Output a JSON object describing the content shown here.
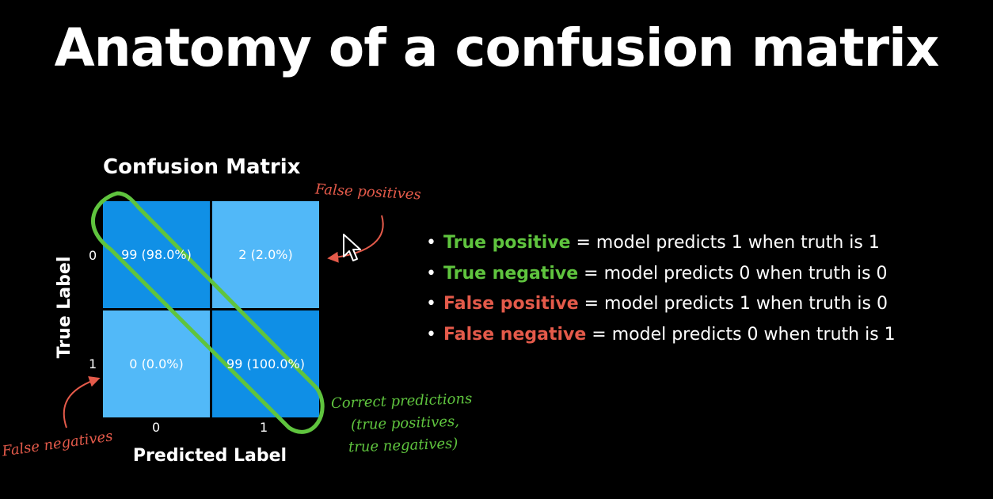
{
  "slide": {
    "title": "Anatomy of a confusion matrix"
  },
  "chart_data": {
    "type": "heatmap",
    "title": "Confusion Matrix",
    "xlabel": "Predicted Label",
    "ylabel": "True Label",
    "x_ticks": [
      "0",
      "1"
    ],
    "y_ticks": [
      "0",
      "1"
    ],
    "cells": [
      [
        {
          "count": 99,
          "percent": 98.0,
          "label": "99 (98.0%)"
        },
        {
          "count": 2,
          "percent": 2.0,
          "label": "2 (2.0%)"
        }
      ],
      [
        {
          "count": 0,
          "percent": 0.0,
          "label": "0 (0.0%)"
        },
        {
          "count": 99,
          "percent": 100.0,
          "label": "99 (100.0%)"
        }
      ]
    ],
    "colors": {
      "high": "#0F8FE6",
      "low": "#52B9F8",
      "highlight": "#5FC43E",
      "annotation_red": "#E45A4A",
      "annotation_green": "#5FC43E"
    },
    "annotations": {
      "false_positives": "False positives",
      "false_negatives": "False negatives",
      "correct_predictions": [
        "Correct predictions",
        "(true positives,",
        "true negatives)"
      ]
    }
  },
  "legend": [
    {
      "bullet": "•",
      "term": "True positive",
      "rest": " = model predicts 1 when truth is 1",
      "color": "#5FC43E"
    },
    {
      "bullet": "•",
      "term": "True negative",
      "rest": " = model predicts 0 when truth is 0",
      "color": "#5FC43E"
    },
    {
      "bullet": "•",
      "term": "False positive",
      "rest": " = model predicts 1 when truth is 0",
      "color": "#E45A4A"
    },
    {
      "bullet": "•",
      "term": "False negative",
      "rest": " = model predicts 0 when truth is 1",
      "color": "#E45A4A"
    }
  ]
}
